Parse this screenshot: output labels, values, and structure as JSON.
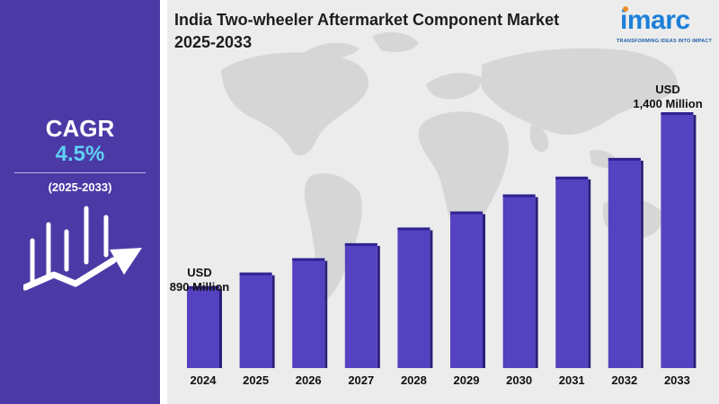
{
  "sidebar": {
    "cagr_label": "CAGR",
    "cagr_value": "4.5%",
    "period": "(2025-2033)",
    "icon": "growth-chart-icon"
  },
  "title_line1": "India Two-wheeler Aftermarket Component Market",
  "title_line2": "2025-2033",
  "logo": {
    "name": "imarc",
    "tagline": "TRANSFORMING IDEAS INTO IMPACT"
  },
  "background": "world-map",
  "colors": {
    "sidebar": "#4b3aa6",
    "bar": "#5442c0",
    "cagr_value": "#5fd0f5",
    "logo": "#1d7fd8"
  },
  "annotations": {
    "first": {
      "line1": "USD",
      "line2": "890 Million"
    },
    "last": {
      "line1": "USD",
      "line2": "1,400 Million"
    }
  },
  "chart_data": {
    "type": "bar",
    "categories": [
      "2024",
      "2025",
      "2026",
      "2027",
      "2028",
      "2029",
      "2030",
      "2031",
      "2032",
      "2033"
    ],
    "values": [
      890,
      930,
      972,
      1016,
      1062,
      1109,
      1159,
      1211,
      1266,
      1400
    ],
    "unit": "USD Million",
    "ylim": [
      650,
      1400
    ],
    "grid": false
  }
}
